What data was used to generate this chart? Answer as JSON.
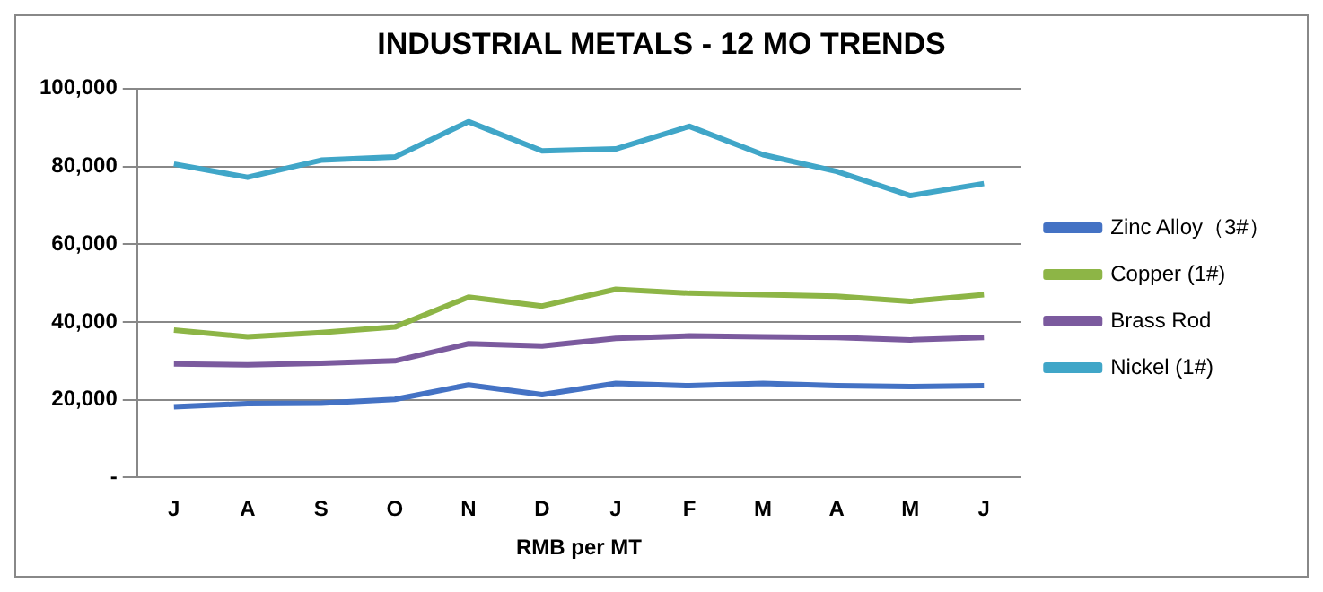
{
  "chart_data": {
    "type": "line",
    "title": "INDUSTRIAL METALS - 12 MO TRENDS",
    "xlabel": "RMB per MT",
    "categories": [
      "J",
      "A",
      "S",
      "O",
      "N",
      "D",
      "J",
      "F",
      "M",
      "A",
      "M",
      "J"
    ],
    "series": [
      {
        "name": "Zinc Alloy（3#）",
        "color": "#4472c4",
        "values": [
          18200,
          19000,
          19100,
          20100,
          23800,
          21300,
          24200,
          23600,
          24200,
          23600,
          23400,
          23600
        ]
      },
      {
        "name": "Copper (1#)",
        "color": "#8db546",
        "values": [
          37900,
          36200,
          37300,
          38700,
          46400,
          44100,
          48400,
          47400,
          47000,
          46600,
          45300,
          47000
        ]
      },
      {
        "name": "Brass Rod",
        "color": "#7b5a9e",
        "values": [
          29200,
          29000,
          29400,
          30000,
          34400,
          33800,
          35800,
          36400,
          36200,
          36000,
          35400,
          36000
        ]
      },
      {
        "name": "Nickel (1#)",
        "color": "#40a6c8",
        "values": [
          80600,
          77200,
          81600,
          82400,
          91500,
          84000,
          84500,
          90300,
          83000,
          78700,
          72500,
          75600
        ]
      }
    ],
    "ylim": [
      0,
      100000
    ],
    "yticks": [
      {
        "value": 0,
        "label": "-"
      },
      {
        "value": 20000,
        "label": "20,000"
      },
      {
        "value": 40000,
        "label": "40,000"
      },
      {
        "value": 60000,
        "label": "60,000"
      },
      {
        "value": 80000,
        "label": "80,000"
      },
      {
        "value": 100000,
        "label": "100,000"
      }
    ],
    "grid": "y",
    "legend": "right",
    "marker": "none",
    "line_style": "solid"
  }
}
